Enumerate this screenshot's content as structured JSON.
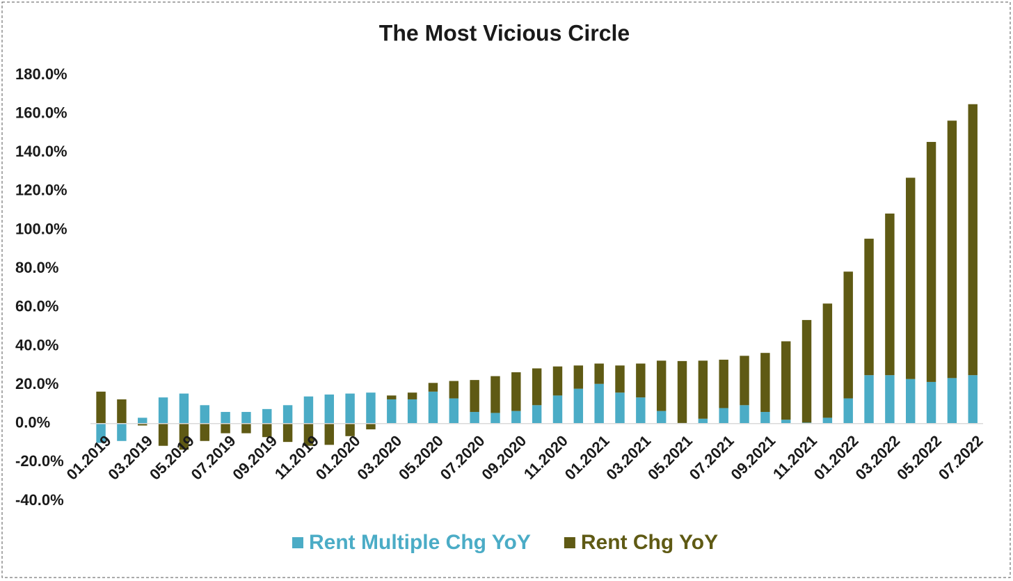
{
  "chart_data": {
    "type": "stacked_bar",
    "title": "The Most Vicious Circle",
    "categories": [
      "01.2019",
      null,
      "03.2019",
      null,
      "05.2019",
      null,
      "07.2019",
      null,
      "09.2019",
      null,
      "11.2019",
      null,
      "01.2020",
      null,
      "03.2020",
      null,
      "05.2020",
      null,
      "07.2020",
      null,
      "09.2020",
      null,
      "11.2020",
      null,
      "01.2021",
      null,
      "03.2021",
      null,
      "05.2021",
      null,
      "07.2021",
      null,
      "09.2021",
      null,
      "11.2021",
      null,
      "01.2022",
      null,
      "03.2022",
      null,
      "05.2022",
      null,
      "07.2022"
    ],
    "series": [
      {
        "name": "Rent Multiple Chg YoY",
        "color": "#4bacc6",
        "values": [
          -10,
          -9,
          3,
          13.5,
          15.5,
          9.5,
          6,
          6,
          7.5,
          9.5,
          14,
          15,
          15.5,
          16,
          12.5,
          12.5,
          16.5,
          13,
          6,
          5.5,
          6.5,
          9.5,
          14.5,
          18,
          20.5,
          16,
          13.5,
          6.5,
          0.3,
          2.5,
          8,
          9.5,
          6,
          2,
          0.5,
          3,
          13,
          25,
          25,
          23,
          21.5,
          23.5,
          25
        ]
      },
      {
        "name": "Rent Chg YoY",
        "color": "#5f5a14",
        "values": [
          16.5,
          12.5,
          -1,
          -11.5,
          -13.5,
          -9,
          -5,
          -5,
          -7,
          -9.5,
          -11.5,
          -11,
          -6.5,
          -3,
          2,
          3.5,
          4.5,
          9,
          16.5,
          19,
          20,
          19,
          15,
          12,
          10.5,
          14,
          17.5,
          26,
          32,
          30,
          25,
          25.5,
          30.5,
          40.5,
          53,
          59,
          65.5,
          70.5,
          83.5,
          104,
          124,
          133,
          140
        ]
      }
    ],
    "ylim": [
      -40,
      180
    ],
    "yticks": [
      {
        "value": -40,
        "label": "-40.0%"
      },
      {
        "value": -20,
        "label": "-20.0%"
      },
      {
        "value": 0,
        "label": "0.0%"
      },
      {
        "value": 20,
        "label": "20.0%"
      },
      {
        "value": 40,
        "label": "40.0%"
      },
      {
        "value": 60,
        "label": "60.0%"
      },
      {
        "value": 80,
        "label": "80.0%"
      },
      {
        "value": 100,
        "label": "100.0%"
      },
      {
        "value": 120,
        "label": "120.0%"
      },
      {
        "value": 140,
        "label": "140.0%"
      },
      {
        "value": 160,
        "label": "160.0%"
      },
      {
        "value": 180,
        "label": "180.0%"
      }
    ],
    "grid": false,
    "legend": "bottom"
  }
}
